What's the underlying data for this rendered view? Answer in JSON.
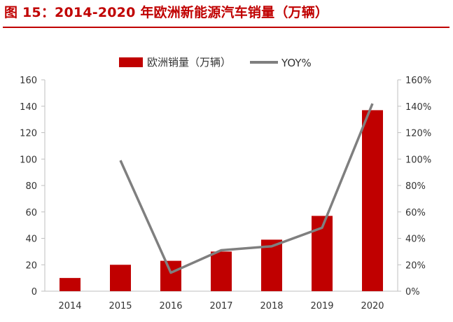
{
  "figure": {
    "title": "图 15：2014-2020 年欧洲新能源汽车销量（万辆）"
  },
  "colors": {
    "title": "#c00000",
    "bar": "#c00000",
    "line": "#7f7f7f"
  },
  "chart_data": {
    "type": "bar",
    "categories": [
      "2014",
      "2015",
      "2016",
      "2017",
      "2018",
      "2019",
      "2020"
    ],
    "series": [
      {
        "name": "欧洲销量（万辆）",
        "type": "bar",
        "axis": "left",
        "values": [
          10,
          20,
          23,
          30,
          39,
          57,
          137
        ]
      },
      {
        "name": "YOY%",
        "type": "line",
        "axis": "right",
        "values": [
          null,
          99,
          14,
          31,
          34,
          48,
          142
        ]
      }
    ],
    "y_left": {
      "range": [
        0,
        160
      ],
      "ticks": [
        "0",
        "20",
        "40",
        "60",
        "80",
        "100",
        "120",
        "140",
        "160"
      ]
    },
    "y_right": {
      "range": [
        0,
        160
      ],
      "ticks": [
        "0%",
        "20%",
        "40%",
        "60%",
        "80%",
        "100%",
        "120%",
        "140%",
        "160%"
      ]
    },
    "grid": false,
    "legend": "top-center"
  }
}
